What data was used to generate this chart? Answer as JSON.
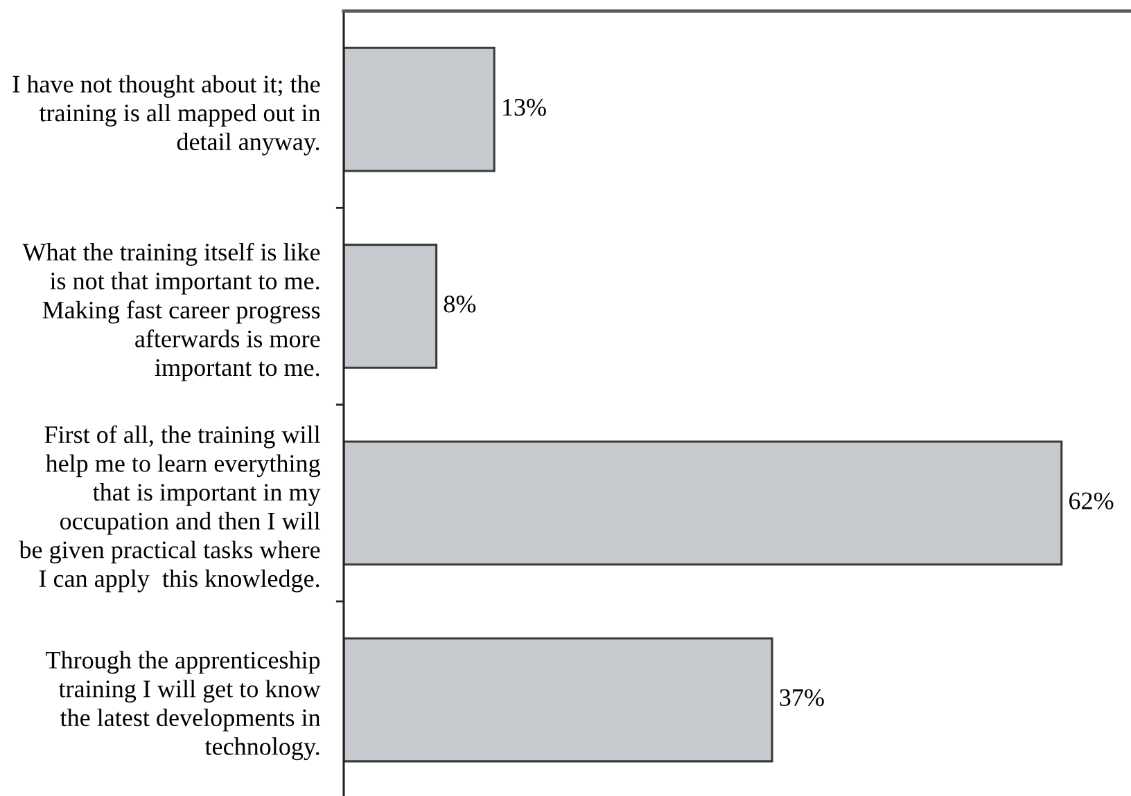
{
  "chart_data": {
    "type": "bar",
    "orientation": "horizontal",
    "categories": [
      "I have not thought about it; the\ntraining is all mapped out in\ndetail anyway.",
      "What the training itself is like\nis not that important to me.\nMaking fast career progress\nafterwards is more\nimportant to me.",
      "First of all, the training will\nhelp me to learn everything\nthat is important in my\noccupation and then I will\nbe given practical tasks where\nI can apply  this knowledge.",
      "Through the apprenticeship\ntraining I will get to know\nthe latest developments in\ntechnology."
    ],
    "values": [
      13,
      8,
      62,
      37
    ],
    "value_labels": [
      "13%",
      "8%",
      "62%",
      "37%"
    ],
    "color": "#c6c9cd",
    "xlim": [
      0,
      68
    ],
    "tick_labels": "y"
  }
}
